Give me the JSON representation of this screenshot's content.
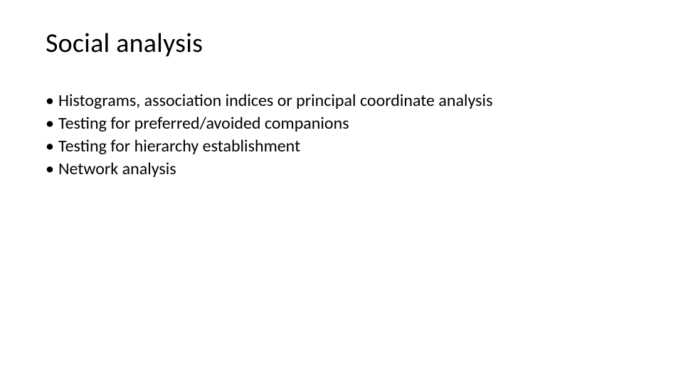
{
  "slide": {
    "title": "Social analysis",
    "bullets": [
      "Histograms, association indices or principal coordinate analysis",
      "Testing for preferred/avoided companions",
      "Testing for hierarchy establishment",
      "Network analysis"
    ],
    "background_color": "#ffffff",
    "text_color": "#000000",
    "title_fontsize": 38,
    "bullet_fontsize": 24
  }
}
